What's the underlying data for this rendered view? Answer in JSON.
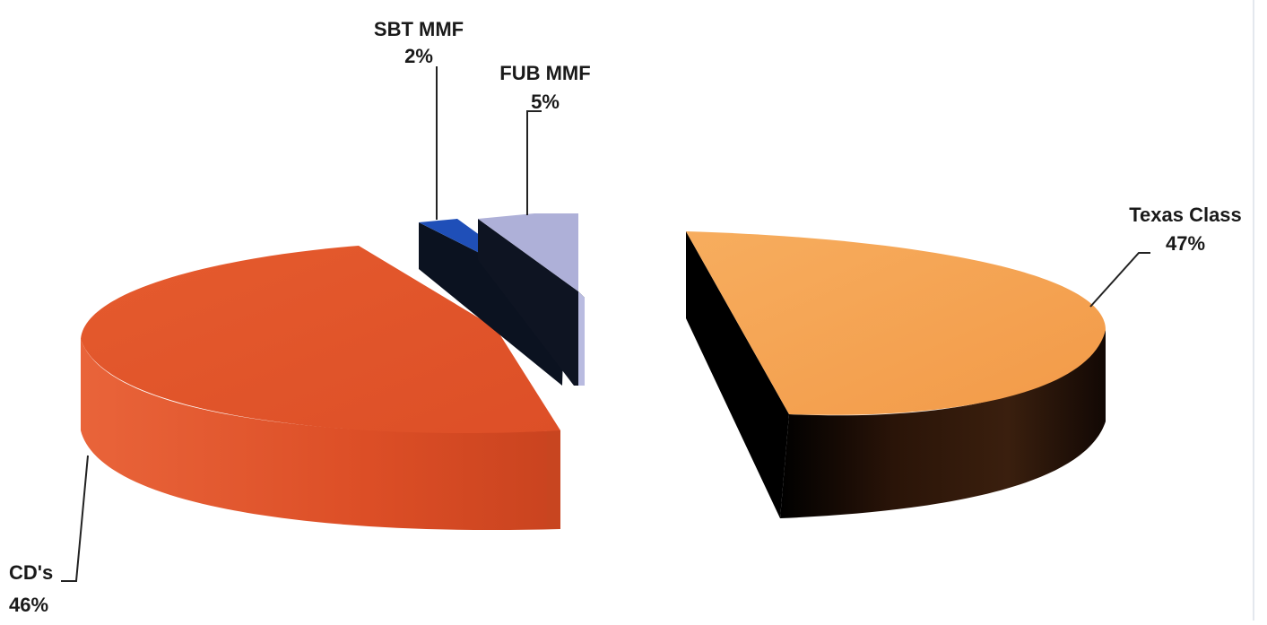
{
  "chart_data": {
    "type": "pie",
    "style": "3d-exploded",
    "slices": [
      {
        "label": "Texas Class",
        "percent_label": "47%",
        "value": 47,
        "color": "#f5a04f",
        "side_color": "#2b1a10"
      },
      {
        "label": "CD's",
        "percent_label": "46%",
        "value": 46,
        "color": "#e3542a",
        "side_color": "#d14a24"
      },
      {
        "label": "SBT MMF",
        "percent_label": "2%",
        "value": 2,
        "color": "#1f4fb8",
        "side_color": "#0b1220"
      },
      {
        "label": "FUB MMF",
        "percent_label": "5%",
        "value": 5,
        "color": "#aeb0d8",
        "side_color": "#0e1422"
      }
    ]
  }
}
